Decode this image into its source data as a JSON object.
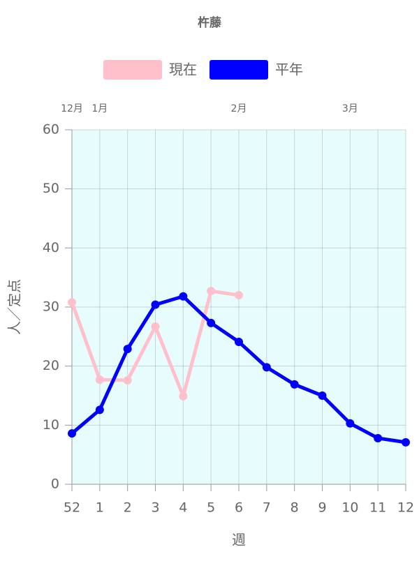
{
  "chart_data": {
    "type": "line",
    "title": "杵藤",
    "categories": [
      "52",
      "1",
      "2",
      "3",
      "4",
      "5",
      "6",
      "7",
      "8",
      "9",
      "10",
      "11",
      "12"
    ],
    "top_categories": [
      "12月",
      "1月",
      null,
      null,
      null,
      null,
      "2月",
      null,
      null,
      null,
      "3月",
      null,
      null
    ],
    "series": [
      {
        "name": "現在",
        "color": "#ffc0cb",
        "values": [
          30.8,
          17.7,
          17.6,
          26.7,
          14.9,
          32.7,
          32.0,
          null,
          null,
          null,
          null,
          null,
          null
        ]
      },
      {
        "name": "平年",
        "color": "#0000ff",
        "values": [
          8.6,
          12.6,
          22.9,
          30.4,
          31.8,
          27.3,
          24.1,
          19.8,
          16.9,
          15.0,
          10.3,
          7.8,
          7.1
        ]
      }
    ],
    "ylim": [
      0,
      60
    ],
    "yticks": [
      0,
      10,
      20,
      30,
      40,
      50,
      60
    ],
    "xlabel": "週",
    "ylabel": "人／定点",
    "grid": true,
    "background": "#e6fcfd"
  }
}
